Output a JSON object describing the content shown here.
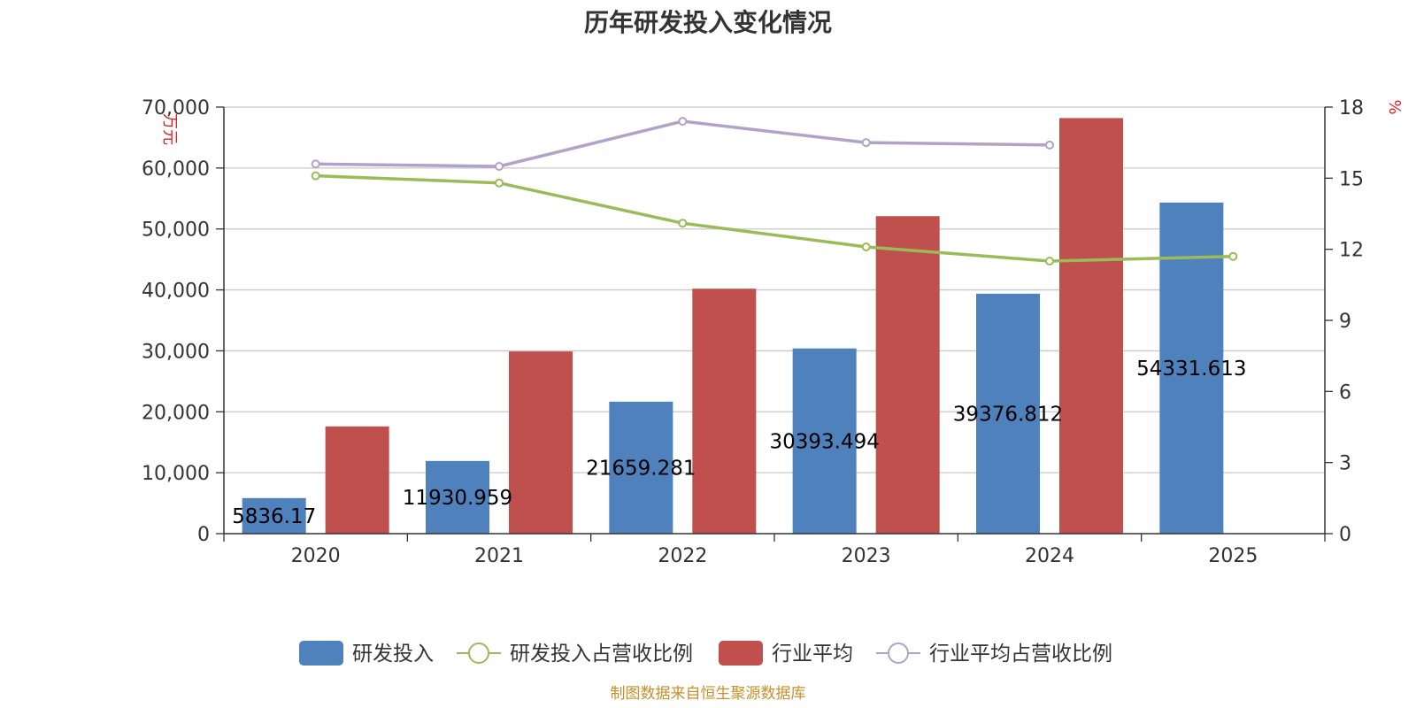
{
  "title": "历年研发投入变化情况",
  "source": "制图数据来自恒生聚源数据库",
  "chart_data": {
    "type": "bar",
    "categories": [
      "2020",
      "2021",
      "2022",
      "2023",
      "2024",
      "2025"
    ],
    "left_axis": {
      "unit": "万元",
      "ylim": [
        0,
        70000
      ],
      "ticks": [
        "0",
        "10,000",
        "20,000",
        "30,000",
        "40,000",
        "50,000",
        "60,000",
        "70,000"
      ]
    },
    "right_axis": {
      "unit": "%",
      "ylim": [
        0,
        18
      ],
      "ticks": [
        "0",
        "3",
        "6",
        "9",
        "12",
        "15",
        "18"
      ]
    },
    "grid": true,
    "legend_position": "bottom",
    "series": [
      {
        "name": "研发投入",
        "type": "bar",
        "axis": "left",
        "color": "#4f81bd",
        "values": [
          5836.17,
          11930.959,
          21659.281,
          30393.494,
          39376.812,
          54331.613
        ],
        "labels": [
          "5836.17",
          "11930.959",
          "21659.281",
          "30393.494",
          "39376.812",
          "54331.613"
        ]
      },
      {
        "name": "研发投入占营收比例",
        "type": "line",
        "axis": "right",
        "color": "#9bbb59",
        "values": [
          15.1,
          14.8,
          13.1,
          12.1,
          11.5,
          11.7
        ]
      },
      {
        "name": "行业平均",
        "type": "bar",
        "axis": "left",
        "color": "#c0504d",
        "values": [
          17600,
          29900,
          40200,
          52100,
          68200,
          null
        ]
      },
      {
        "name": "行业平均占营收比例",
        "type": "line",
        "axis": "right",
        "color": "#b3a2c7",
        "values": [
          15.6,
          15.5,
          17.4,
          16.5,
          16.4,
          null
        ]
      }
    ]
  }
}
